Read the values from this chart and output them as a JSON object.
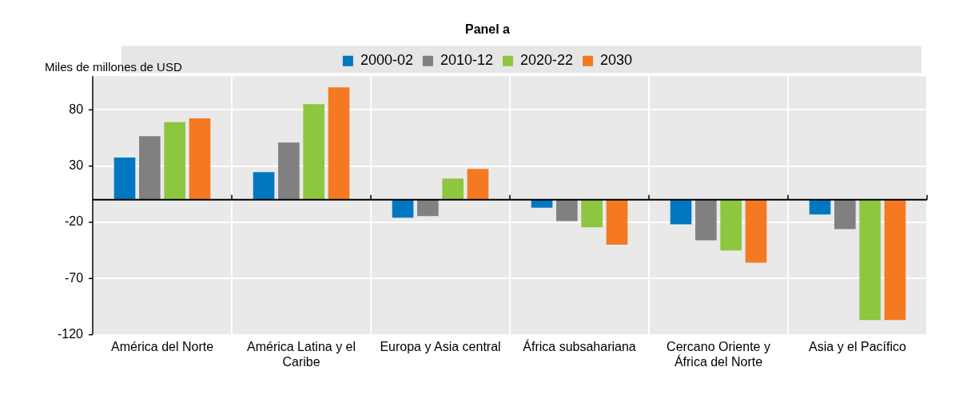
{
  "chart_data": {
    "type": "bar",
    "title": "Panel a",
    "ylabel": "Miles de millones de USD",
    "categories": [
      "América del Norte",
      "América Latina y el Caribe",
      "Europa y Asia central",
      "África subsahariana",
      "Cercano Oriente y África del Norte",
      "Asia y el Pacífico"
    ],
    "series": [
      {
        "name": "2000-02",
        "color": "#0077c0",
        "values": [
          37.6,
          24.7,
          -16,
          -7,
          -21.7,
          -13
        ]
      },
      {
        "name": "2010-12",
        "color": "#808080",
        "values": [
          56.6,
          51,
          -14.5,
          -19,
          -36,
          -26
        ]
      },
      {
        "name": "2020-22",
        "color": "#8dc63f",
        "values": [
          69,
          85,
          19,
          -24.5,
          -45,
          -107
        ]
      },
      {
        "name": "2030",
        "color": "#f47920",
        "values": [
          72.5,
          100,
          27.5,
          -40,
          -56,
          -107
        ]
      }
    ],
    "ylim": [
      -120,
      110
    ],
    "yticks": [
      80,
      30,
      -20,
      -70,
      -120
    ],
    "grid": true,
    "legend": "top"
  }
}
